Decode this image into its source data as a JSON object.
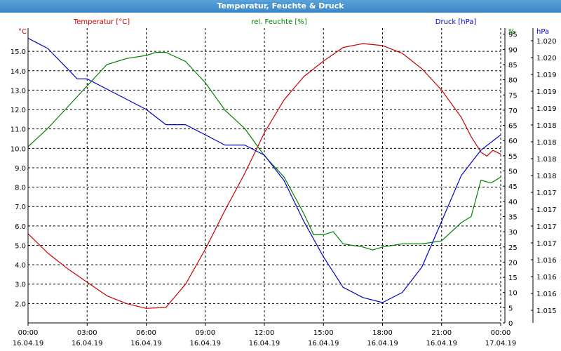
{
  "window_title": "Temperatur, Feuchte & Druck",
  "colors": {
    "temperature": "#cc0000",
    "humidity": "#008000",
    "pressure": "#0000cc",
    "grid": "#000000"
  },
  "chart_data": {
    "type": "line",
    "title": "Temperatur, Feuchte & Druck",
    "grid": true,
    "x_labels": [
      {
        "time": "00:00",
        "date": "16.04.19"
      },
      {
        "time": "03:00",
        "date": "16.04.19"
      },
      {
        "time": "06:00",
        "date": "16.04.19"
      },
      {
        "time": "09:00",
        "date": "16.04.19"
      },
      {
        "time": "12:00",
        "date": "16.04.19"
      },
      {
        "time": "15:00",
        "date": "16.04.19"
      },
      {
        "time": "18:00",
        "date": "16.04.19"
      },
      {
        "time": "21:00",
        "date": "16.04.19"
      },
      {
        "time": "00:00",
        "date": "17.04.19"
      }
    ],
    "x_range_hours": [
      0,
      24
    ],
    "axes": {
      "temperature": {
        "unit": "°C",
        "label": "Temperatur [°C]",
        "range": [
          1.0,
          16.2
        ],
        "ticks": [
          "2.0",
          "3.0",
          "4.0",
          "5.0",
          "6.0",
          "7.0",
          "8.0",
          "9.0",
          "10.0",
          "11.0",
          "12.0",
          "13.0",
          "14.0",
          "15.0"
        ]
      },
      "humidity": {
        "unit": "%",
        "label": "rel. Feuchte [%]",
        "range": [
          0,
          97
        ],
        "ticks": [
          "0",
          "5",
          "10",
          "15",
          "20",
          "25",
          "30",
          "35",
          "40",
          "45",
          "50",
          "55",
          "60",
          "65",
          "70",
          "75",
          "80",
          "85",
          "90",
          "95"
        ]
      },
      "pressure": {
        "unit": "hPa",
        "label": "Druck [hPa]",
        "range": [
          1014.6,
          1020.4
        ],
        "ticks": [
          "1.015",
          "1.016",
          "1.016",
          "1.016",
          "1.017",
          "1.017",
          "1.017",
          "1.017",
          "1.018",
          "1.018",
          "1.018",
          "1.018",
          "1.019",
          "1.019",
          "1.019",
          "1.020",
          "1.020"
        ]
      }
    },
    "series": [
      {
        "name": "Temperatur [°C]",
        "axis": "temperature",
        "points": [
          [
            0,
            5.6
          ],
          [
            1,
            4.6
          ],
          [
            2,
            3.8
          ],
          [
            3,
            3.1
          ],
          [
            4,
            2.4
          ],
          [
            5,
            2.0
          ],
          [
            6,
            1.75
          ],
          [
            7,
            1.8
          ],
          [
            8,
            3.0
          ],
          [
            9,
            4.8
          ],
          [
            10,
            6.8
          ],
          [
            11,
            8.7
          ],
          [
            12,
            10.8
          ],
          [
            13,
            12.5
          ],
          [
            14,
            13.7
          ],
          [
            15,
            14.5
          ],
          [
            16,
            15.2
          ],
          [
            17,
            15.4
          ],
          [
            18,
            15.3
          ],
          [
            19,
            14.9
          ],
          [
            20,
            14.1
          ],
          [
            21,
            13.0
          ],
          [
            22,
            11.6
          ],
          [
            22.5,
            10.6
          ],
          [
            23,
            9.8
          ],
          [
            23.3,
            9.6
          ],
          [
            23.6,
            9.9
          ],
          [
            24,
            9.7
          ]
        ]
      },
      {
        "name": "rel. Feuchte [%]",
        "axis": "humidity",
        "points": [
          [
            0,
            58
          ],
          [
            1,
            64
          ],
          [
            2,
            71
          ],
          [
            3,
            78
          ],
          [
            4,
            85
          ],
          [
            5,
            87
          ],
          [
            6,
            88
          ],
          [
            6.5,
            89
          ],
          [
            7,
            89
          ],
          [
            8,
            86
          ],
          [
            9,
            79
          ],
          [
            10,
            70
          ],
          [
            11,
            64
          ],
          [
            12,
            55
          ],
          [
            13,
            48
          ],
          [
            14,
            36
          ],
          [
            14.5,
            29
          ],
          [
            15,
            29
          ],
          [
            15.5,
            30
          ],
          [
            16,
            26
          ],
          [
            17,
            25
          ],
          [
            17.5,
            24
          ],
          [
            18,
            25
          ],
          [
            19,
            26
          ],
          [
            20,
            26
          ],
          [
            21,
            27
          ],
          [
            22,
            33
          ],
          [
            22.5,
            35
          ],
          [
            23,
            47
          ],
          [
            23.5,
            46
          ],
          [
            24,
            48
          ]
        ]
      },
      {
        "name": "Druck [hPa]",
        "axis": "pressure",
        "points": [
          [
            0,
            1020.2
          ],
          [
            0.5,
            1020.1
          ],
          [
            1,
            1020.0
          ],
          [
            2,
            1019.6
          ],
          [
            2.5,
            1019.4
          ],
          [
            3,
            1019.4
          ],
          [
            4,
            1019.2
          ],
          [
            5,
            1019.0
          ],
          [
            6,
            1018.8
          ],
          [
            7,
            1018.5
          ],
          [
            8,
            1018.5
          ],
          [
            9,
            1018.3
          ],
          [
            10,
            1018.1
          ],
          [
            11,
            1018.1
          ],
          [
            12,
            1017.9
          ],
          [
            13,
            1017.4
          ],
          [
            14,
            1016.6
          ],
          [
            15,
            1015.9
          ],
          [
            16,
            1015.3
          ],
          [
            17,
            1015.1
          ],
          [
            18,
            1015.0
          ],
          [
            19,
            1015.2
          ],
          [
            20,
            1015.7
          ],
          [
            21,
            1016.6
          ],
          [
            22,
            1017.5
          ],
          [
            23,
            1018.0
          ],
          [
            24,
            1018.3
          ]
        ]
      }
    ]
  }
}
